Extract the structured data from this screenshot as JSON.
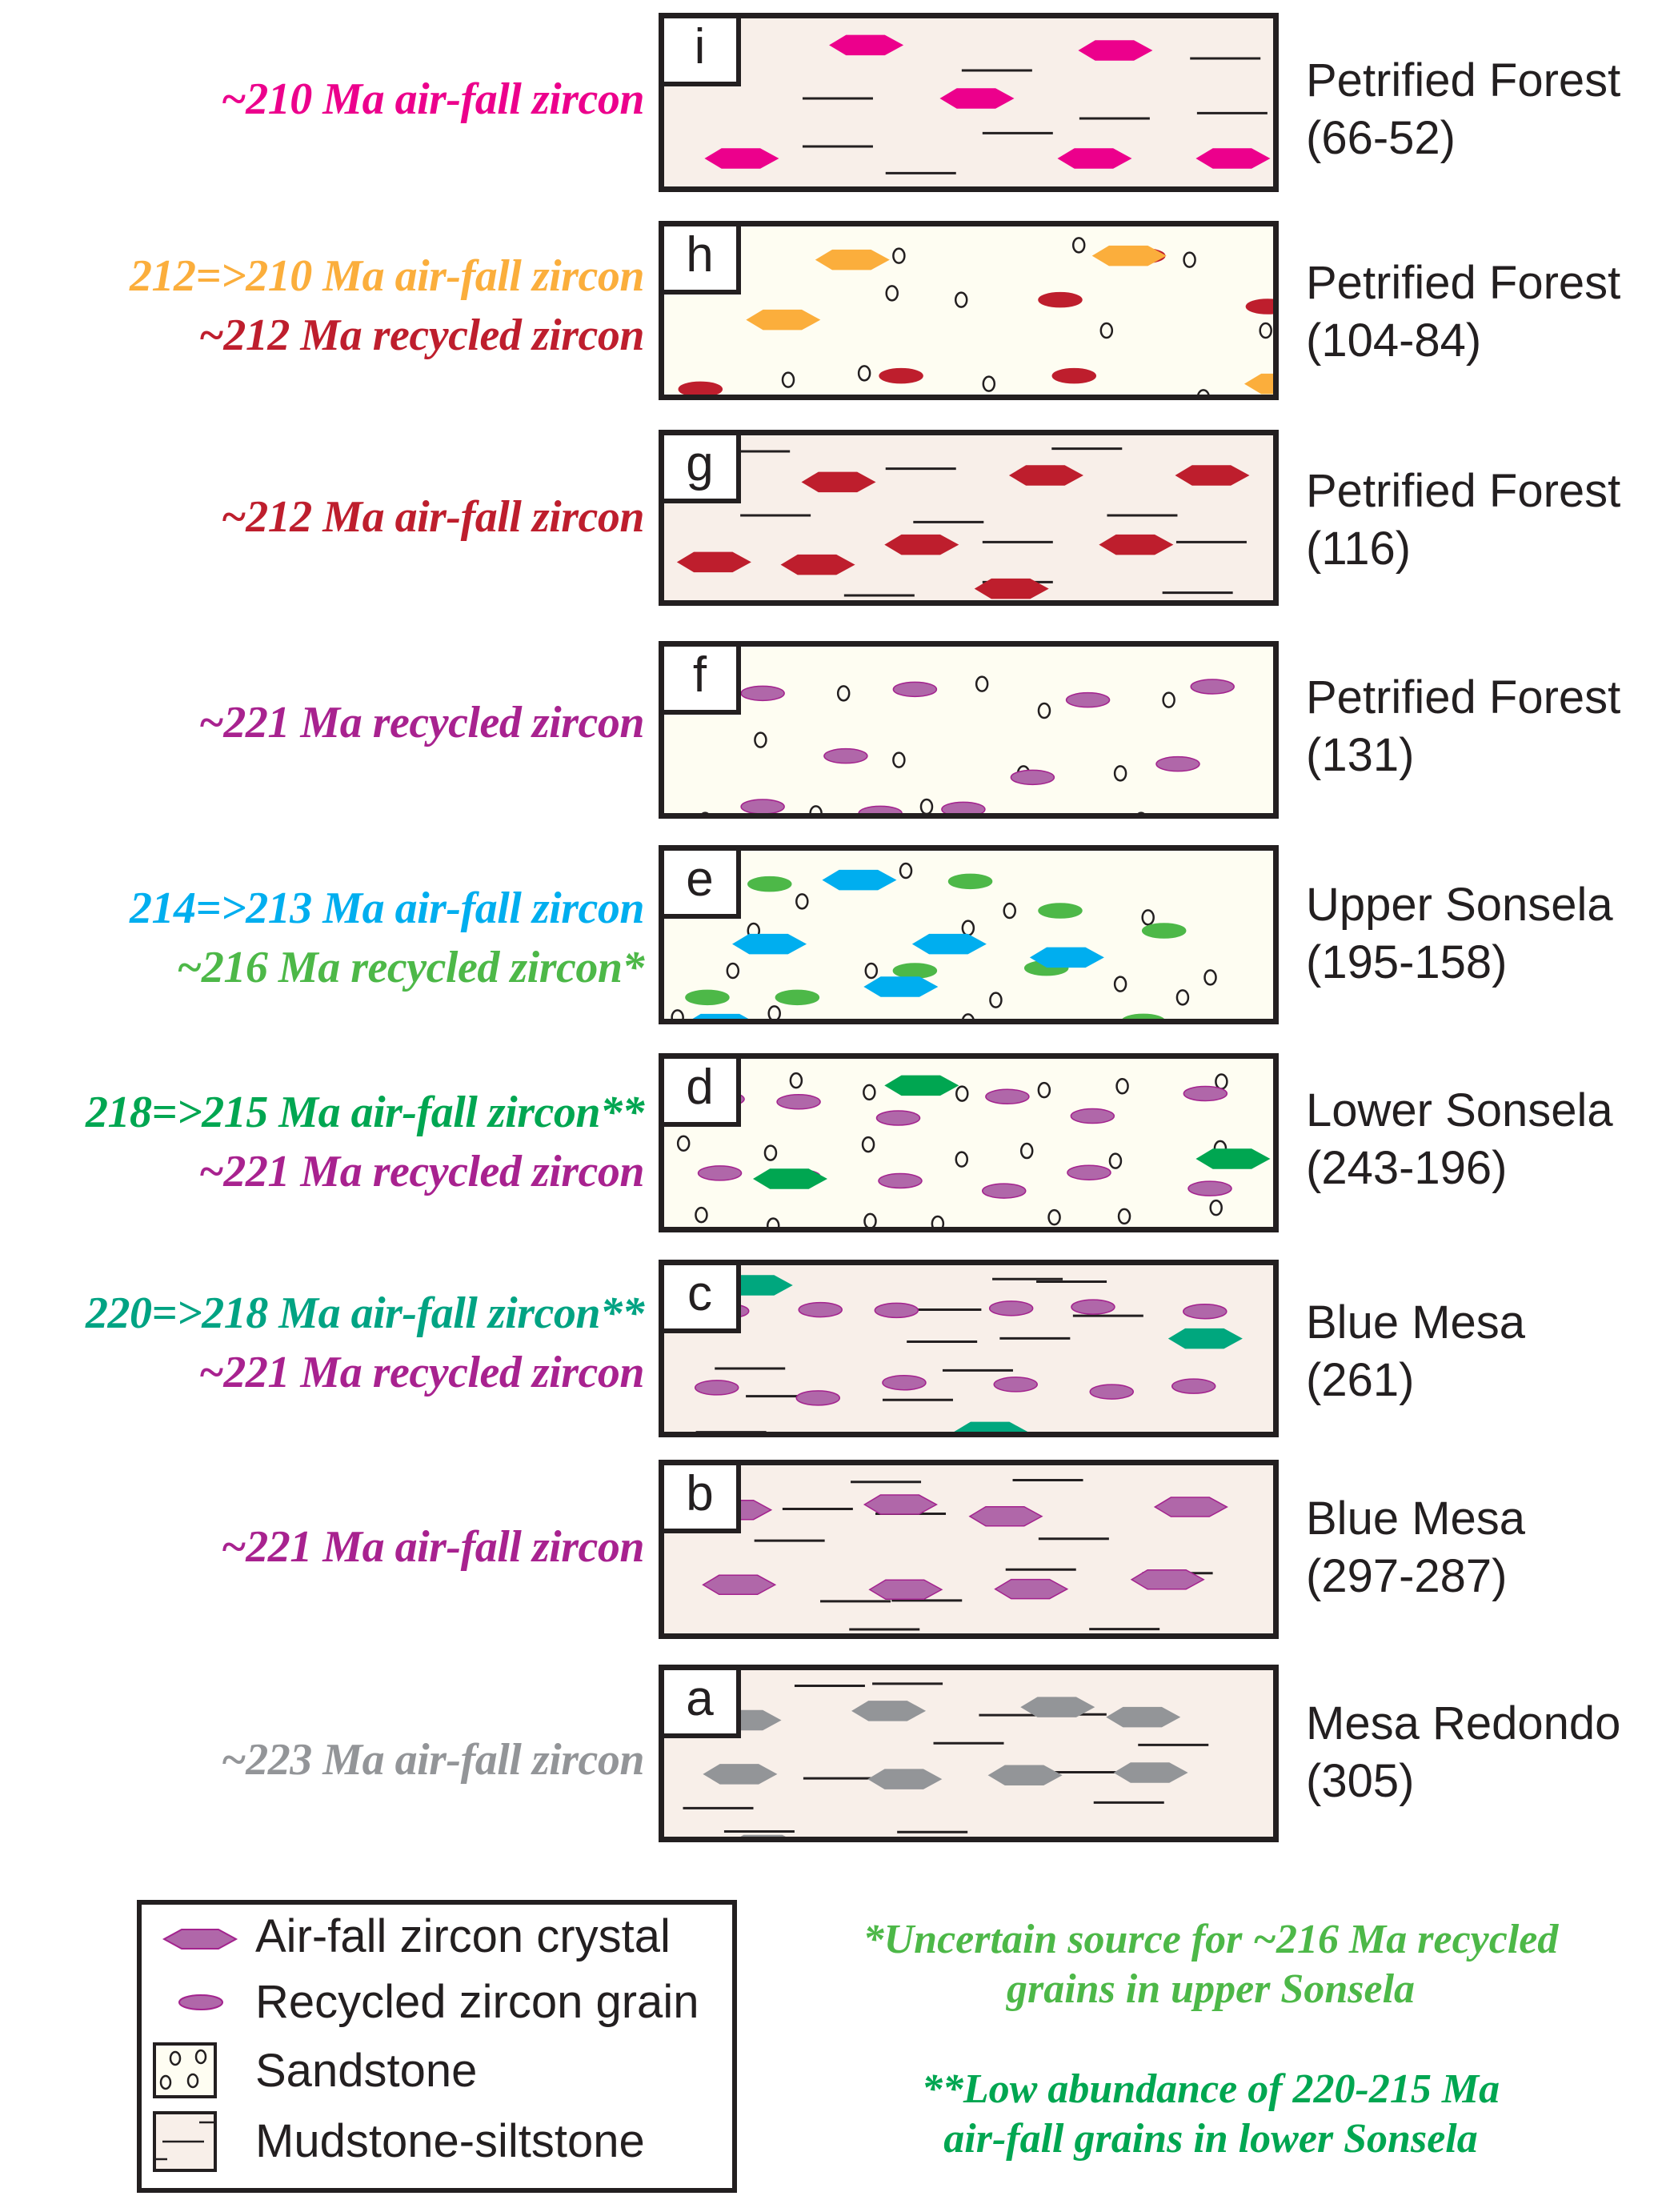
{
  "colors": {
    "pink": "#ec008c",
    "orange": "#fbae3c",
    "red": "#be1e2d",
    "purple_text": "#a8228f",
    "purple_fill": "#b067a9",
    "purple_stroke": "#a3238e",
    "blue": "#00aeef",
    "light_green": "#4db848",
    "green": "#00a651",
    "teal": "#00a77e",
    "teal_text": "#00a383",
    "gray": "#939598",
    "mudstone_bg": "#f8efe9",
    "sandstone_bg": "#fefdf2",
    "ink": "#231f20"
  },
  "panels": [
    {
      "letter": "i",
      "lithology": "mudstone",
      "unit": "Petrified Forest",
      "range": "(66-52)",
      "labels": [
        {
          "text": "~210 Ma air-fall zircon",
          "color": "#ec008c"
        }
      ],
      "airfall_color": "#ec008c",
      "recycled_color": null
    },
    {
      "letter": "h",
      "lithology": "sandstone",
      "unit": "Petrified Forest",
      "range": "(104-84)",
      "labels": [
        {
          "text": "212=>210 Ma air-fall zircon",
          "color": "#fbae3c"
        },
        {
          "text": "~212 Ma recycled zircon",
          "color": "#be1e2d"
        }
      ],
      "airfall_color": "#fbae3c",
      "recycled_color": "#be1e2d"
    },
    {
      "letter": "g",
      "lithology": "mudstone",
      "unit": "Petrified Forest",
      "range": "(116)",
      "labels": [
        {
          "text": "~212 Ma air-fall zircon",
          "color": "#be1e2d"
        }
      ],
      "airfall_color": "#be1e2d",
      "recycled_color": null
    },
    {
      "letter": "f",
      "lithology": "sandstone",
      "unit": "Petrified Forest",
      "range": "(131)",
      "labels": [
        {
          "text": "~221 Ma recycled zircon",
          "color": "#a8228f"
        }
      ],
      "airfall_color": null,
      "recycled_color": "#b067a9"
    },
    {
      "letter": "e",
      "lithology": "sandstone",
      "unit": "Upper Sonsela",
      "range": "(195-158)",
      "labels": [
        {
          "text": "214=>213 Ma air-fall zircon",
          "color": "#00aeef"
        },
        {
          "text": "~216 Ma recycled zircon*",
          "color": "#4db848"
        }
      ],
      "airfall_color": "#00aeef",
      "recycled_color": "#4db848"
    },
    {
      "letter": "d",
      "lithology": "sandstone",
      "unit": "Lower Sonsela",
      "range": "(243-196)",
      "labels": [
        {
          "text": "218=>215 Ma air-fall zircon**",
          "color": "#00a651"
        },
        {
          "text": "~221 Ma recycled zircon",
          "color": "#a8228f"
        }
      ],
      "airfall_color": "#00a651",
      "recycled_color": "#b067a9"
    },
    {
      "letter": "c",
      "lithology": "mudstone",
      "unit": "Blue Mesa",
      "range": "(261)",
      "labels": [
        {
          "text": "220=>218 Ma air-fall zircon**",
          "color": "#00a383"
        },
        {
          "text": "~221 Ma recycled zircon",
          "color": "#a8228f"
        }
      ],
      "airfall_color": "#00a77e",
      "recycled_color": "#b067a9"
    },
    {
      "letter": "b",
      "lithology": "mudstone",
      "unit": "Blue Mesa",
      "range": "(297-287)",
      "labels": [
        {
          "text": "~221 Ma air-fall zircon",
          "color": "#a8228f"
        }
      ],
      "airfall_color": "#b067a9",
      "recycled_color": null
    },
    {
      "letter": "a",
      "lithology": "mudstone",
      "unit": "Mesa Redondo",
      "range": "(305)",
      "labels": [
        {
          "text": "~223 Ma air-fall zircon",
          "color": "#939598"
        }
      ],
      "airfall_color": "#939598",
      "recycled_color": null
    }
  ],
  "legend": {
    "items": [
      {
        "label": "Air-fall zircon crystal",
        "icon": "hexagon-icon"
      },
      {
        "label": "Recycled zircon grain",
        "icon": "ellipse-icon"
      },
      {
        "label": "Sandstone",
        "icon": "sandstone-swatch"
      },
      {
        "label": "Mudstone-siltstone",
        "icon": "mudstone-swatch"
      }
    ]
  },
  "footnotes": [
    {
      "lines": [
        "*Uncertain source for ~216 Ma recycled",
        "grains in upper Sonsela"
      ],
      "color": "#4db848"
    },
    {
      "lines": [
        "**Low abundance of 220-215 Ma",
        "air-fall grains in lower Sonsela"
      ],
      "color": "#00a651"
    }
  ]
}
